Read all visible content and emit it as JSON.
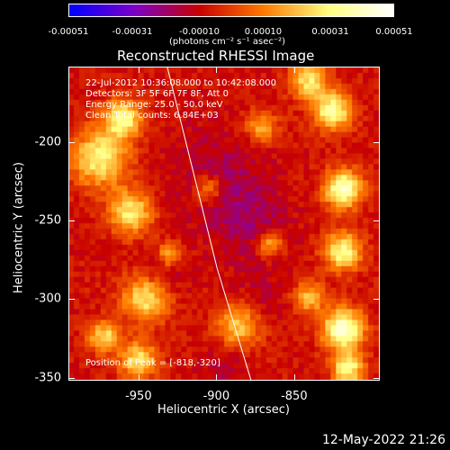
{
  "chart_data": {
    "type": "heatmap",
    "title": "Reconstructed RHESSI Image",
    "xlabel": "Heliocentric X (arcsec)",
    "ylabel": "Heliocentric Y (arcsec)",
    "xlim": [
      -995,
      -795
    ],
    "ylim": [
      -352,
      -152
    ],
    "x_ticks": [
      "-950",
      "-900",
      "-850"
    ],
    "y_ticks": [
      "-200",
      "-250",
      "-300",
      "-350"
    ],
    "x_tick_values": [
      -950,
      -900,
      -850
    ],
    "y_tick_values": [
      -200,
      -250,
      -300,
      -350
    ],
    "colorbar": {
      "ticks": [
        "-0.00051",
        "-0.00031",
        "-0.00010",
        "0.00010",
        "0.00031",
        "0.00051"
      ],
      "tick_values": [
        -0.00051,
        -0.00031,
        -0.0001,
        0.0001,
        0.00031,
        0.00051
      ],
      "units": "(photons cm⁻² s⁻¹ asec⁻²)",
      "colormap": [
        "#0000ff",
        "#7b00c8",
        "#c80000",
        "#ff7a00",
        "#ffff80",
        "#ffffff"
      ]
    },
    "annotations": [
      "22-Jul-2012 10:36:08.000 to 10:42:08.000",
      "Detectors: 3F 5F 6F 7F 8F, Att 0",
      "Energy Range: 25.0 - 50.0 keV",
      "Clean    Total counts: 6.84E+03"
    ],
    "peak_label": "Position of Peak = [-818,-320]",
    "peak": [
      -818,
      -320
    ],
    "limb_curve": [
      [
        -932,
        -152
      ],
      [
        -915,
        -220
      ],
      [
        -900,
        -280
      ],
      [
        -878,
        -352
      ]
    ],
    "hot_regions": [
      [
        -975,
        -210,
        18,
        0.75
      ],
      [
        -960,
        -185,
        12,
        0.8
      ],
      [
        -955,
        -245,
        14,
        0.7
      ],
      [
        -945,
        -300,
        15,
        0.72
      ],
      [
        -972,
        -325,
        10,
        0.65
      ],
      [
        -950,
        -340,
        12,
        0.7
      ],
      [
        -885,
        -318,
        14,
        0.6
      ],
      [
        -870,
        -190,
        10,
        0.5
      ],
      [
        -865,
        -265,
        8,
        0.5
      ],
      [
        -840,
        -160,
        12,
        0.68
      ],
      [
        -825,
        -180,
        12,
        0.85
      ],
      [
        -818,
        -230,
        12,
        0.95
      ],
      [
        -818,
        -270,
        12,
        0.8
      ],
      [
        -818,
        -320,
        13,
        1.0
      ],
      [
        -815,
        -345,
        10,
        0.8
      ],
      [
        -840,
        -300,
        10,
        0.55
      ],
      [
        -905,
        -230,
        9,
        0.45
      ],
      [
        -930,
        -272,
        8,
        0.55
      ]
    ],
    "cool_regions": [
      [
        -900,
        -220,
        30,
        0.6
      ],
      [
        -880,
        -250,
        25,
        0.7
      ],
      [
        -935,
        -285,
        15,
        0.7
      ],
      [
        -870,
        -300,
        18,
        0.4
      ],
      [
        -895,
        -345,
        15,
        0.5
      ]
    ]
  },
  "footer": {
    "date": "12-May-2022 21:26"
  }
}
